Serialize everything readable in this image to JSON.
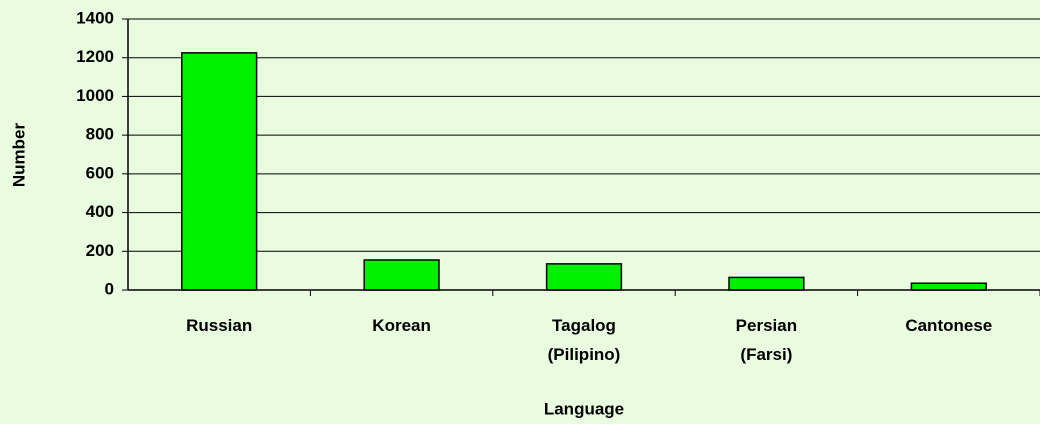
{
  "chart_data": {
    "type": "bar",
    "x_label": "Language",
    "y_label": "Number",
    "categories": [
      "Russian",
      "Korean",
      "Tagalog (Pilipino)",
      "Persian (Farsi)",
      "Cantonese"
    ],
    "values": [
      1225,
      155,
      135,
      65,
      35
    ],
    "color": "#00f000",
    "ylim": [
      0,
      1400
    ],
    "yticks": [
      0,
      200,
      400,
      600,
      800,
      1000,
      1200,
      1400
    ],
    "grid": true
  }
}
